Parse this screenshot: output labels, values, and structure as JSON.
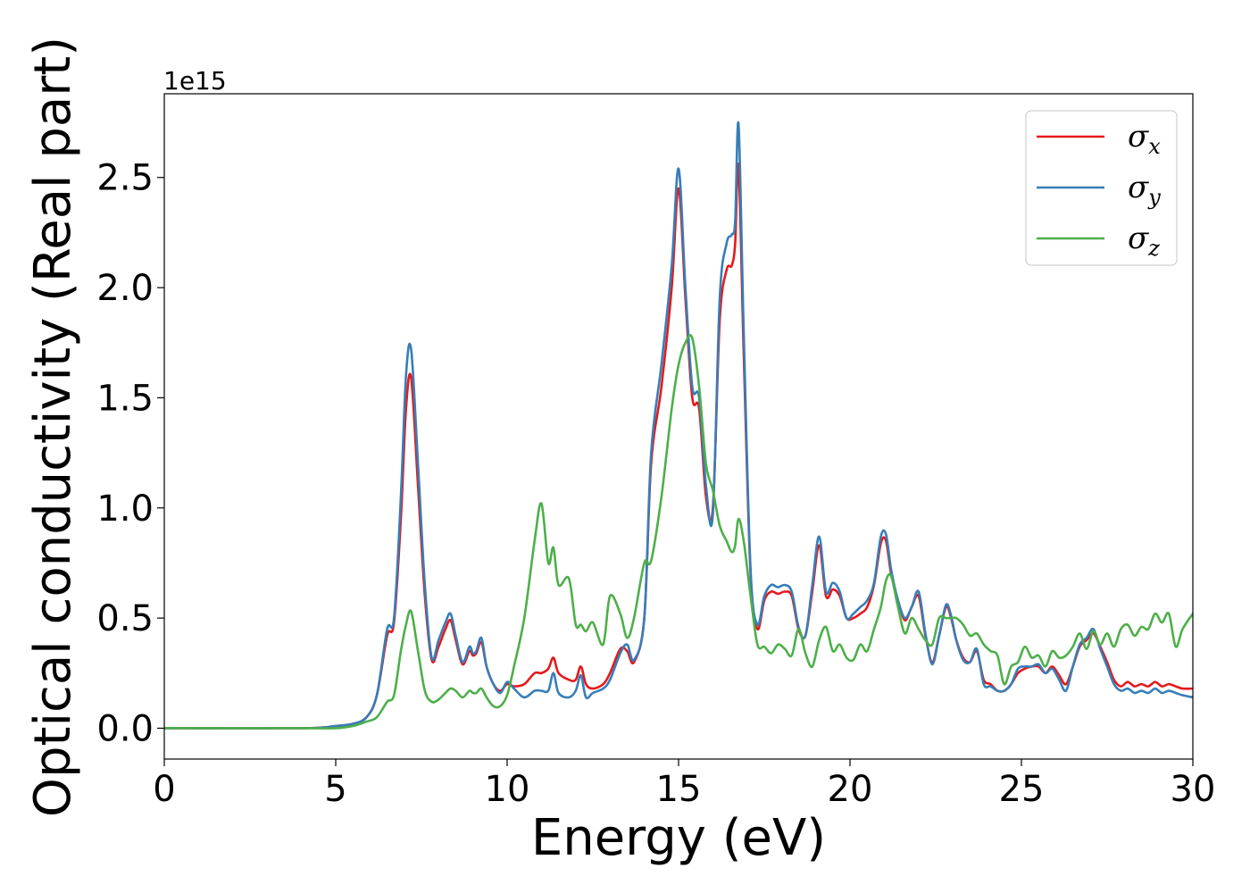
{
  "chart_data": {
    "type": "line",
    "xlabel": "Energy (eV)",
    "ylabel": "Optical conductivity (Real part)",
    "offset_text": "1e15",
    "xlim": [
      0,
      30
    ],
    "ylim": [
      -0.14,
      2.88
    ],
    "xticks": [
      0,
      5,
      10,
      15,
      20,
      25,
      30
    ],
    "xtick_labels": [
      "0",
      "5",
      "10",
      "15",
      "20",
      "25",
      "30"
    ],
    "yticks": [
      0.0,
      0.5,
      1.0,
      1.5,
      2.0,
      2.5
    ],
    "ytick_labels": [
      "0.0",
      "0.5",
      "1.0",
      "1.5",
      "2.0",
      "2.5"
    ],
    "grid": false,
    "legend_position": "top-right",
    "series": [
      {
        "name": "σx",
        "label_base": "σ",
        "label_sub": "x",
        "color": "#e41a1c",
        "x": [
          0,
          4,
          5,
          5.5,
          5.9,
          6.2,
          6.5,
          6.7,
          6.9,
          7.05,
          7.2,
          7.4,
          7.6,
          7.8,
          8.0,
          8.2,
          8.35,
          8.5,
          8.7,
          8.9,
          9.0,
          9.1,
          9.25,
          9.4,
          9.6,
          9.8,
          10.0,
          10.2,
          10.5,
          10.8,
          11.0,
          11.2,
          11.35,
          11.5,
          11.8,
          12.0,
          12.15,
          12.3,
          12.5,
          12.8,
          13.0,
          13.3,
          13.5,
          13.7,
          14.0,
          14.2,
          14.5,
          14.8,
          15.0,
          15.2,
          15.4,
          15.6,
          15.8,
          16.0,
          16.2,
          16.4,
          16.55,
          16.65,
          16.75,
          16.9,
          17.1,
          17.3,
          17.5,
          17.7,
          17.9,
          18.1,
          18.3,
          18.5,
          18.7,
          18.9,
          19.1,
          19.3,
          19.5,
          19.7,
          19.9,
          20.1,
          20.3,
          20.5,
          20.7,
          20.9,
          21.05,
          21.2,
          21.4,
          21.6,
          21.8,
          22.0,
          22.2,
          22.4,
          22.6,
          22.8,
          22.95,
          23.1,
          23.3,
          23.5,
          23.7,
          23.9,
          24.1,
          24.3,
          24.5,
          24.7,
          24.9,
          25.1,
          25.3,
          25.5,
          25.7,
          25.9,
          26.1,
          26.3,
          26.5,
          26.7,
          26.9,
          27.1,
          27.3,
          27.5,
          27.7,
          27.9,
          28.1,
          28.3,
          28.5,
          28.7,
          28.9,
          29.1,
          29.3,
          29.5,
          29.7,
          30
        ],
        "y": [
          0,
          0,
          0.01,
          0.02,
          0.05,
          0.15,
          0.42,
          0.48,
          0.95,
          1.45,
          1.59,
          1.1,
          0.6,
          0.31,
          0.37,
          0.45,
          0.49,
          0.4,
          0.29,
          0.35,
          0.33,
          0.34,
          0.39,
          0.28,
          0.2,
          0.17,
          0.2,
          0.19,
          0.2,
          0.25,
          0.25,
          0.27,
          0.32,
          0.25,
          0.22,
          0.22,
          0.28,
          0.2,
          0.18,
          0.2,
          0.25,
          0.36,
          0.35,
          0.3,
          0.5,
          1.2,
          1.55,
          2.0,
          2.45,
          1.95,
          1.5,
          1.45,
          1.05,
          1.0,
          1.85,
          2.08,
          2.1,
          2.2,
          2.55,
          1.7,
          0.7,
          0.45,
          0.58,
          0.62,
          0.61,
          0.62,
          0.6,
          0.45,
          0.42,
          0.62,
          0.83,
          0.6,
          0.63,
          0.6,
          0.5,
          0.5,
          0.52,
          0.55,
          0.65,
          0.84,
          0.85,
          0.7,
          0.58,
          0.49,
          0.55,
          0.6,
          0.42,
          0.3,
          0.42,
          0.55,
          0.5,
          0.4,
          0.32,
          0.3,
          0.35,
          0.22,
          0.2,
          0.17,
          0.17,
          0.2,
          0.25,
          0.27,
          0.28,
          0.28,
          0.25,
          0.28,
          0.24,
          0.2,
          0.28,
          0.37,
          0.4,
          0.43,
          0.37,
          0.3,
          0.22,
          0.19,
          0.21,
          0.19,
          0.2,
          0.19,
          0.21,
          0.19,
          0.2,
          0.19,
          0.18,
          0.18
        ]
      },
      {
        "name": "σy",
        "label_base": "σ",
        "label_sub": "y",
        "color": "#377eb8",
        "x": [
          0,
          4,
          5,
          5.5,
          5.9,
          6.2,
          6.5,
          6.7,
          6.9,
          7.05,
          7.2,
          7.4,
          7.6,
          7.8,
          8.0,
          8.2,
          8.35,
          8.5,
          8.7,
          8.9,
          9.0,
          9.1,
          9.25,
          9.4,
          9.6,
          9.8,
          10.0,
          10.2,
          10.5,
          10.8,
          11.0,
          11.2,
          11.35,
          11.5,
          11.8,
          12.0,
          12.15,
          12.3,
          12.5,
          12.8,
          13.0,
          13.3,
          13.5,
          13.7,
          14.0,
          14.2,
          14.5,
          14.8,
          15.0,
          15.2,
          15.4,
          15.6,
          15.8,
          16.0,
          16.2,
          16.4,
          16.55,
          16.65,
          16.75,
          16.9,
          17.1,
          17.3,
          17.5,
          17.7,
          17.9,
          18.1,
          18.3,
          18.5,
          18.7,
          18.9,
          19.1,
          19.3,
          19.5,
          19.7,
          19.9,
          20.1,
          20.3,
          20.5,
          20.7,
          20.9,
          21.05,
          21.2,
          21.4,
          21.6,
          21.8,
          22.0,
          22.2,
          22.4,
          22.6,
          22.8,
          22.95,
          23.1,
          23.3,
          23.5,
          23.7,
          23.9,
          24.1,
          24.3,
          24.5,
          24.7,
          24.9,
          25.1,
          25.3,
          25.5,
          25.7,
          25.9,
          26.1,
          26.3,
          26.5,
          26.7,
          26.9,
          27.1,
          27.3,
          27.5,
          27.7,
          27.9,
          28.1,
          28.3,
          28.5,
          28.7,
          28.9,
          29.1,
          29.3,
          29.5,
          29.7,
          30
        ],
        "y": [
          0,
          0,
          0.01,
          0.02,
          0.05,
          0.15,
          0.45,
          0.5,
          1.05,
          1.6,
          1.72,
          1.2,
          0.65,
          0.32,
          0.4,
          0.48,
          0.52,
          0.42,
          0.3,
          0.37,
          0.34,
          0.35,
          0.41,
          0.28,
          0.2,
          0.16,
          0.21,
          0.18,
          0.14,
          0.17,
          0.17,
          0.17,
          0.25,
          0.16,
          0.14,
          0.17,
          0.24,
          0.14,
          0.16,
          0.18,
          0.22,
          0.34,
          0.38,
          0.31,
          0.5,
          1.25,
          1.65,
          2.1,
          2.54,
          2.0,
          1.55,
          1.5,
          1.1,
          0.97,
          1.95,
          2.2,
          2.24,
          2.3,
          2.74,
          1.8,
          0.72,
          0.47,
          0.6,
          0.65,
          0.64,
          0.65,
          0.62,
          0.46,
          0.42,
          0.65,
          0.87,
          0.62,
          0.66,
          0.62,
          0.5,
          0.52,
          0.55,
          0.58,
          0.66,
          0.87,
          0.88,
          0.72,
          0.58,
          0.5,
          0.55,
          0.62,
          0.43,
          0.29,
          0.42,
          0.56,
          0.51,
          0.4,
          0.31,
          0.3,
          0.36,
          0.2,
          0.19,
          0.17,
          0.17,
          0.2,
          0.27,
          0.28,
          0.28,
          0.29,
          0.25,
          0.27,
          0.22,
          0.17,
          0.28,
          0.38,
          0.41,
          0.45,
          0.36,
          0.28,
          0.2,
          0.17,
          0.18,
          0.16,
          0.17,
          0.16,
          0.18,
          0.16,
          0.17,
          0.16,
          0.15,
          0.14
        ]
      },
      {
        "name": "σz",
        "label_base": "σ",
        "label_sub": "z",
        "color": "#4daf4a",
        "x": [
          0,
          4,
          5,
          5.5,
          5.9,
          6.2,
          6.5,
          6.7,
          6.9,
          7.05,
          7.2,
          7.4,
          7.6,
          7.8,
          8.0,
          8.2,
          8.35,
          8.5,
          8.7,
          8.9,
          9.0,
          9.1,
          9.25,
          9.4,
          9.6,
          9.8,
          10.0,
          10.2,
          10.5,
          10.8,
          11.0,
          11.2,
          11.35,
          11.5,
          11.8,
          12.0,
          12.15,
          12.3,
          12.5,
          12.8,
          13.0,
          13.3,
          13.5,
          13.7,
          14.0,
          14.2,
          14.5,
          14.8,
          15.0,
          15.2,
          15.4,
          15.6,
          15.8,
          16.0,
          16.2,
          16.4,
          16.55,
          16.65,
          16.75,
          16.9,
          17.1,
          17.3,
          17.5,
          17.7,
          17.9,
          18.1,
          18.3,
          18.5,
          18.7,
          18.9,
          19.1,
          19.3,
          19.5,
          19.7,
          19.9,
          20.1,
          20.3,
          20.5,
          20.7,
          20.9,
          21.05,
          21.2,
          21.4,
          21.6,
          21.8,
          22.0,
          22.2,
          22.4,
          22.6,
          22.8,
          22.95,
          23.1,
          23.3,
          23.5,
          23.7,
          23.9,
          24.1,
          24.3,
          24.5,
          24.7,
          24.9,
          25.1,
          25.3,
          25.5,
          25.7,
          25.9,
          26.1,
          26.3,
          26.5,
          26.7,
          26.9,
          27.1,
          27.3,
          27.5,
          27.7,
          27.9,
          28.1,
          28.3,
          28.5,
          28.7,
          28.9,
          29.1,
          29.3,
          29.5,
          29.7,
          30
        ],
        "y": [
          0,
          0,
          0,
          0.01,
          0.03,
          0.05,
          0.12,
          0.15,
          0.35,
          0.47,
          0.53,
          0.35,
          0.17,
          0.12,
          0.13,
          0.16,
          0.18,
          0.17,
          0.14,
          0.17,
          0.16,
          0.16,
          0.18,
          0.14,
          0.1,
          0.1,
          0.15,
          0.28,
          0.5,
          0.85,
          1.02,
          0.75,
          0.82,
          0.65,
          0.68,
          0.47,
          0.47,
          0.44,
          0.48,
          0.38,
          0.6,
          0.52,
          0.41,
          0.5,
          0.75,
          0.76,
          1.05,
          1.45,
          1.65,
          1.75,
          1.77,
          1.55,
          1.2,
          1.08,
          0.92,
          0.85,
          0.8,
          0.83,
          0.95,
          0.85,
          0.6,
          0.38,
          0.37,
          0.34,
          0.38,
          0.36,
          0.33,
          0.45,
          0.34,
          0.28,
          0.4,
          0.46,
          0.35,
          0.38,
          0.32,
          0.31,
          0.38,
          0.35,
          0.45,
          0.55,
          0.67,
          0.69,
          0.55,
          0.43,
          0.5,
          0.45,
          0.4,
          0.38,
          0.5,
          0.5,
          0.5,
          0.5,
          0.47,
          0.42,
          0.43,
          0.38,
          0.35,
          0.33,
          0.2,
          0.28,
          0.3,
          0.37,
          0.32,
          0.33,
          0.28,
          0.35,
          0.32,
          0.33,
          0.37,
          0.43,
          0.36,
          0.44,
          0.38,
          0.43,
          0.37,
          0.45,
          0.47,
          0.42,
          0.46,
          0.45,
          0.52,
          0.48,
          0.52,
          0.37,
          0.45,
          0.52
        ]
      }
    ]
  }
}
